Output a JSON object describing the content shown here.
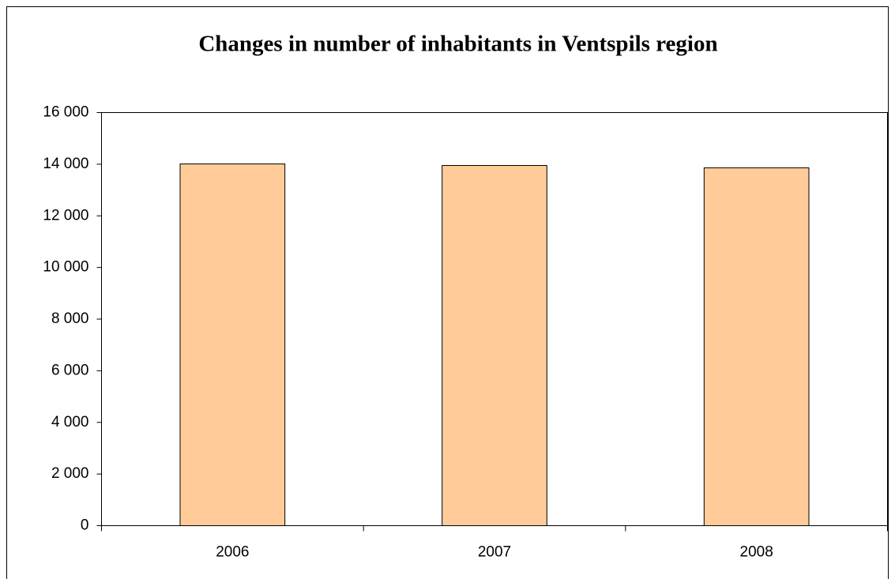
{
  "chart_data": {
    "type": "bar",
    "title": "Changes in number of inhabitants in Ventspils region",
    "categories": [
      "2006",
      "2007",
      "2008"
    ],
    "values": [
      14010,
      13950,
      13860
    ],
    "color": "#ffcc99",
    "ylim": [
      0,
      16000
    ],
    "yticks": [
      0,
      {
        "value": 2000,
        "label": "2 000"
      },
      {
        "value": 4000,
        "label": "4 000"
      },
      {
        "value": 6000,
        "label": "6 000"
      },
      {
        "value": 8000,
        "label": "8 000"
      },
      {
        "value": 10000,
        "label": "10 000"
      },
      {
        "value": 12000,
        "label": "12 000"
      },
      {
        "value": 14000,
        "label": "14 000"
      },
      {
        "value": 16000,
        "label": "16 000"
      }
    ],
    "grid": false
  }
}
